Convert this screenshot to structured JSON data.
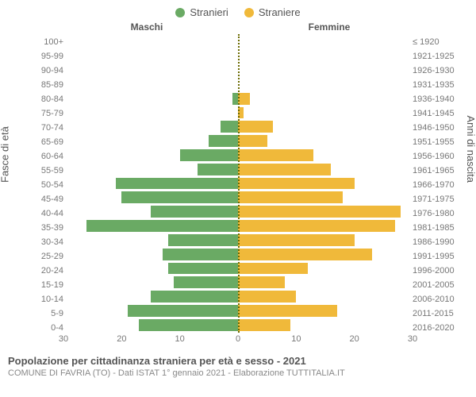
{
  "legend": {
    "male": {
      "label": "Stranieri",
      "color": "#6aaa64"
    },
    "female": {
      "label": "Straniere",
      "color": "#f0b93a"
    }
  },
  "headers": {
    "male": "Maschi",
    "female": "Femmine"
  },
  "axis_labels": {
    "left": "Fasce di età",
    "right": "Anni di nascita"
  },
  "chart": {
    "type": "population-pyramid",
    "xmax": 30,
    "xticks": [
      0,
      10,
      20,
      30
    ],
    "bar_colors": {
      "male": "#6aaa64",
      "female": "#f0b93a"
    },
    "background": "#ffffff",
    "centerline_color": "#6a6a00",
    "rows": [
      {
        "age": "100+",
        "birth": "≤ 1920",
        "m": 0,
        "f": 0
      },
      {
        "age": "95-99",
        "birth": "1921-1925",
        "m": 0,
        "f": 0
      },
      {
        "age": "90-94",
        "birth": "1926-1930",
        "m": 0,
        "f": 0
      },
      {
        "age": "85-89",
        "birth": "1931-1935",
        "m": 0,
        "f": 0
      },
      {
        "age": "80-84",
        "birth": "1936-1940",
        "m": 1,
        "f": 2
      },
      {
        "age": "75-79",
        "birth": "1941-1945",
        "m": 0,
        "f": 1
      },
      {
        "age": "70-74",
        "birth": "1946-1950",
        "m": 3,
        "f": 6
      },
      {
        "age": "65-69",
        "birth": "1951-1955",
        "m": 5,
        "f": 5
      },
      {
        "age": "60-64",
        "birth": "1956-1960",
        "m": 10,
        "f": 13
      },
      {
        "age": "55-59",
        "birth": "1961-1965",
        "m": 7,
        "f": 16
      },
      {
        "age": "50-54",
        "birth": "1966-1970",
        "m": 21,
        "f": 20
      },
      {
        "age": "45-49",
        "birth": "1971-1975",
        "m": 20,
        "f": 18
      },
      {
        "age": "40-44",
        "birth": "1976-1980",
        "m": 15,
        "f": 28
      },
      {
        "age": "35-39",
        "birth": "1981-1985",
        "m": 26,
        "f": 27
      },
      {
        "age": "30-34",
        "birth": "1986-1990",
        "m": 12,
        "f": 20
      },
      {
        "age": "25-29",
        "birth": "1991-1995",
        "m": 13,
        "f": 23
      },
      {
        "age": "20-24",
        "birth": "1996-2000",
        "m": 12,
        "f": 12
      },
      {
        "age": "15-19",
        "birth": "2001-2005",
        "m": 11,
        "f": 8
      },
      {
        "age": "10-14",
        "birth": "2006-2010",
        "m": 15,
        "f": 10
      },
      {
        "age": "5-9",
        "birth": "2011-2015",
        "m": 19,
        "f": 17
      },
      {
        "age": "0-4",
        "birth": "2016-2020",
        "m": 17,
        "f": 9
      }
    ]
  },
  "title": {
    "main": "Popolazione per cittadinanza straniera per età e sesso - 2021",
    "sub": "COMUNE DI FAVRIA (TO) - Dati ISTAT 1° gennaio 2021 - Elaborazione TUTTITALIA.IT"
  }
}
